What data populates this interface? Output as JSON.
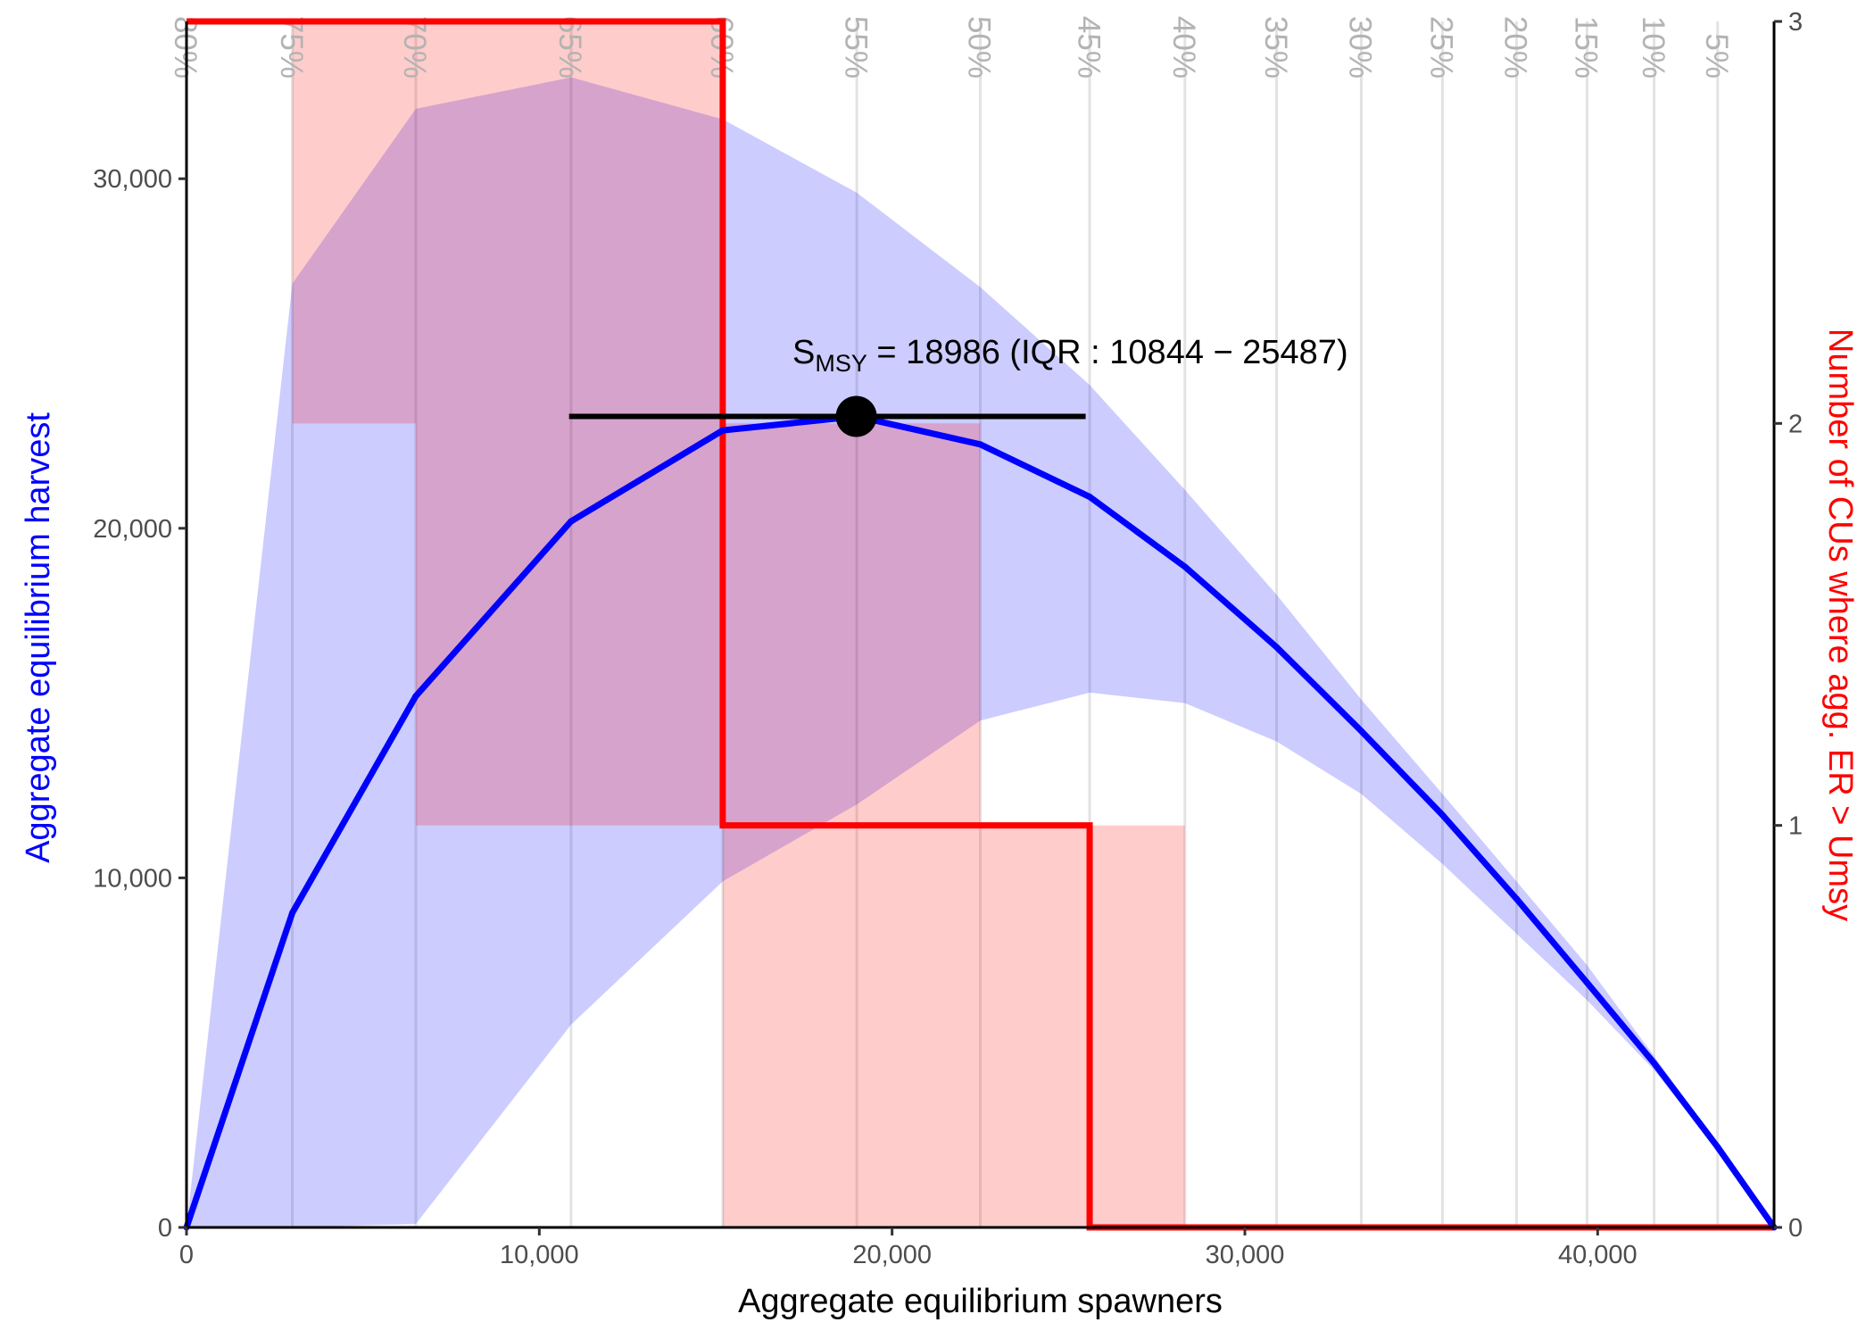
{
  "chart_data": {
    "type": "line",
    "xlabel": "Aggregate equilibrium spawners",
    "ylabel_left": "Aggregate equilibrium harvest",
    "ylabel_right": "Number of CUs where agg. ER > Umsy",
    "xlim": [
      0,
      45000
    ],
    "ylim_left": [
      0,
      34500
    ],
    "ylim_right": [
      0,
      3
    ],
    "x_ticks": [
      0,
      10000,
      20000,
      30000,
      40000
    ],
    "x_tick_labels": [
      "0",
      "10,000",
      "20,000",
      "30,000",
      "40,000"
    ],
    "y_left_ticks": [
      0,
      10000,
      20000,
      30000
    ],
    "y_left_tick_labels": [
      "0",
      "10,000",
      "20,000",
      "30,000"
    ],
    "y_right_ticks": [
      0,
      1,
      2,
      3
    ],
    "y_right_tick_labels": [
      "0",
      "1",
      "2",
      "3"
    ],
    "exploitation_rate_lines": [
      {
        "label": "80%",
        "x": 0
      },
      {
        "label": "75%",
        "x": 3000
      },
      {
        "label": "70%",
        "x": 6500
      },
      {
        "label": "65%",
        "x": 10900
      },
      {
        "label": "60%",
        "x": 15200
      },
      {
        "label": "55%",
        "x": 19000
      },
      {
        "label": "50%",
        "x": 22500
      },
      {
        "label": "45%",
        "x": 25600
      },
      {
        "label": "40%",
        "x": 28300
      },
      {
        "label": "35%",
        "x": 30900
      },
      {
        "label": "30%",
        "x": 33300
      },
      {
        "label": "25%",
        "x": 35600
      },
      {
        "label": "20%",
        "x": 37700
      },
      {
        "label": "15%",
        "x": 39700
      },
      {
        "label": "10%",
        "x": 41600
      },
      {
        "label": "5%",
        "x": 43400
      }
    ],
    "series": [
      {
        "name": "Aggregate equilibrium harvest",
        "axis": "left",
        "color": "#0000ff",
        "x": [
          0,
          3000,
          6500,
          10900,
          15200,
          19000,
          22500,
          25600,
          28300,
          30900,
          33300,
          35600,
          37700,
          39700,
          41600,
          43400,
          45000
        ],
        "y": [
          0,
          9000,
          15200,
          20200,
          22800,
          23200,
          22400,
          20900,
          18900,
          16600,
          14200,
          11800,
          9400,
          7000,
          4700,
          2300,
          0
        ],
        "band_lower": [
          0,
          0,
          100,
          5800,
          9900,
          12100,
          14500,
          15300,
          15000,
          13900,
          12400,
          10400,
          8400,
          6500,
          4500,
          2200,
          0
        ],
        "band_upper": [
          0,
          27000,
          32000,
          32900,
          31700,
          29600,
          26900,
          24100,
          21100,
          18100,
          15100,
          12400,
          9900,
          7500,
          4900,
          2400,
          0
        ],
        "band_color": "#0000ff"
      },
      {
        "name": "Number of CUs where agg. ER > Umsy",
        "axis": "right",
        "type": "step",
        "color": "#ff0000",
        "x": [
          0,
          15200,
          15200,
          25600,
          25600,
          45000
        ],
        "y": [
          3,
          3,
          1,
          1,
          0,
          0
        ],
        "band_color": "#ff0000",
        "band_rects": [
          {
            "x0": 3000,
            "x1": 15200,
            "y0": 2,
            "y1": 3
          },
          {
            "x0": 6500,
            "x1": 15200,
            "y0": 1,
            "y1": 2
          },
          {
            "x0": 15200,
            "x1": 22500,
            "y0": 1,
            "y1": 2
          },
          {
            "x0": 15200,
            "x1": 28300,
            "y0": 0,
            "y1": 1
          }
        ]
      }
    ],
    "smsy": {
      "value": 18986,
      "iqr_low": 10844,
      "iqr_high": 25487,
      "harvest": 23200,
      "label_main": "S",
      "label_sub": "MSY",
      "label_rest": " =  18986 (IQR :  10844 − 25487)"
    }
  }
}
